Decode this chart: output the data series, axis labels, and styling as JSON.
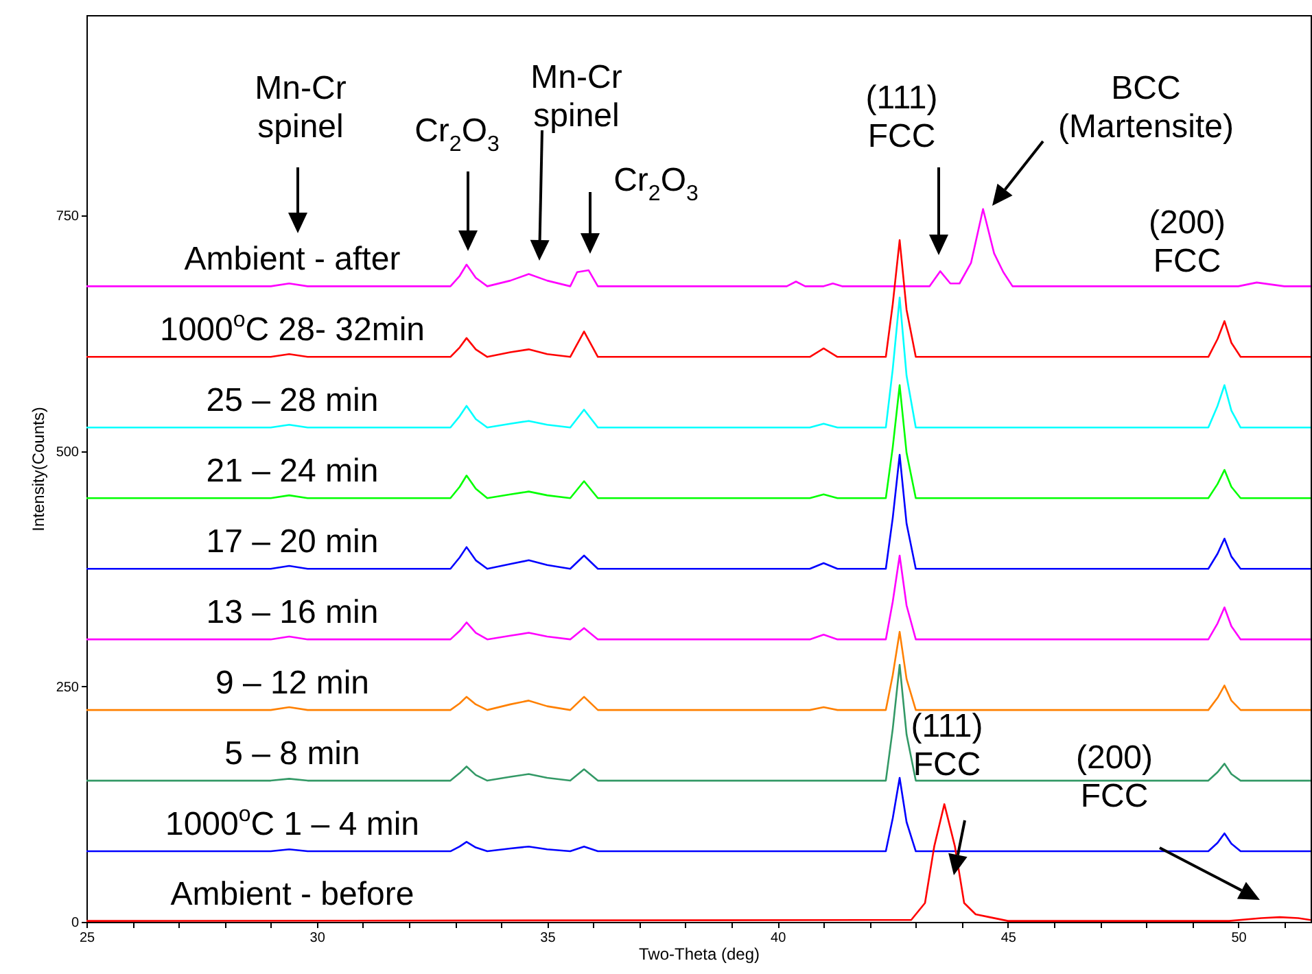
{
  "chart_data": {
    "type": "line",
    "xlabel": "Two-Theta (deg)",
    "ylabel": "Intensity(Counts)",
    "xlim": [
      25,
      51.57
    ],
    "ylim": [
      0,
      963
    ],
    "xticks": [
      25,
      {
        "value": 26,
        "label": null
      },
      {
        "value": 27,
        "label": null
      },
      {
        "value": 28,
        "label": null
      },
      {
        "value": 29,
        "label": null
      },
      30,
      {
        "value": 31,
        "label": null
      },
      {
        "value": 32,
        "label": null
      },
      {
        "value": 33,
        "label": null
      },
      {
        "value": 34,
        "label": null
      },
      35,
      {
        "value": 36,
        "label": null
      },
      {
        "value": 37,
        "label": null
      },
      {
        "value": 38,
        "label": null
      },
      {
        "value": 39,
        "label": null
      },
      40,
      {
        "value": 41,
        "label": null
      },
      {
        "value": 42,
        "label": null
      },
      {
        "value": 43,
        "label": null
      },
      {
        "value": 44,
        "label": null
      },
      45,
      {
        "value": 46,
        "label": null
      },
      {
        "value": 47,
        "label": null
      },
      {
        "value": 48,
        "label": null
      },
      {
        "value": 49,
        "label": null
      },
      50,
      {
        "value": 51,
        "label": null
      }
    ],
    "yticks": [
      0,
      250,
      500,
      750
    ],
    "grid": false,
    "marker": "none",
    "line_style": "solid",
    "x": [
      25,
      29.0,
      29.4,
      29.8,
      32.9,
      33.1,
      33.25,
      33.45,
      33.7,
      34.2,
      34.6,
      35.0,
      35.5,
      35.8,
      36.1,
      40.7,
      41.0,
      41.3,
      42.35,
      42.5,
      42.65,
      42.8,
      43.0,
      49.35,
      49.55,
      49.7,
      49.85,
      50.05,
      51.57
    ],
    "series": [
      {
        "name": "Ambient - after",
        "color": "#ff00ff",
        "x": [
          25,
          29.0,
          29.4,
          29.8,
          32.9,
          33.1,
          33.25,
          33.45,
          33.7,
          34.2,
          34.6,
          35.0,
          35.5,
          35.65,
          35.9,
          36.1,
          40.2,
          40.4,
          40.6,
          41.0,
          41.2,
          41.4,
          43.3,
          43.53,
          43.75,
          43.95,
          44.2,
          44.46,
          44.7,
          44.9,
          45.1,
          50.0,
          50.4,
          51.0,
          51.57
        ],
        "values": [
          675,
          675,
          678,
          675,
          675,
          686,
          698,
          684,
          675,
          681,
          688,
          681,
          675,
          690,
          692,
          675,
          675,
          680,
          675,
          675,
          678,
          675,
          675,
          691,
          678,
          678,
          700,
          757,
          710,
          690,
          675,
          675,
          679,
          675,
          675
        ]
      },
      {
        "name": "1000$^{o}$C 28- 32min",
        "color": "#ff0000",
        "values": [
          600,
          600,
          603,
          600,
          600,
          610,
          620,
          608,
          600,
          605,
          608,
          603,
          600,
          627,
          600,
          600,
          609,
          600,
          600,
          656,
          724,
          650,
          600,
          600,
          619,
          638,
          615,
          600,
          600
        ]
      },
      {
        "name": "25 – 28 min",
        "color": "#00ffff",
        "values": [
          525,
          525,
          528,
          525,
          525,
          537,
          548,
          534,
          525,
          529,
          532,
          528,
          525,
          544,
          525,
          525,
          529,
          525,
          525,
          587,
          663,
          580,
          525,
          525,
          548,
          570,
          543,
          525,
          525
        ]
      },
      {
        "name": "21 – 24 min",
        "color": "#00ff00",
        "values": [
          450,
          450,
          453,
          450,
          450,
          462,
          474,
          460,
          450,
          454,
          457,
          453,
          450,
          468,
          450,
          450,
          454,
          450,
          450,
          504,
          570,
          498,
          450,
          450,
          465,
          480,
          462,
          450,
          450
        ]
      },
      {
        "name": "17 – 20 min",
        "color": "#0000ff",
        "values": [
          375,
          375,
          378,
          375,
          375,
          387,
          398,
          384,
          375,
          380,
          384,
          379,
          375,
          389,
          375,
          375,
          381,
          375,
          375,
          429,
          496,
          423,
          375,
          375,
          391,
          407,
          388,
          375,
          375
        ]
      },
      {
        "name": "13 – 16 min",
        "color": "#ff00ff",
        "values": [
          300,
          300,
          303,
          300,
          300,
          309,
          318,
          307,
          300,
          304,
          307,
          303,
          300,
          312,
          300,
          300,
          305,
          300,
          300,
          340,
          389,
          336,
          300,
          300,
          317,
          334,
          314,
          300,
          300
        ]
      },
      {
        "name": "9 – 12 min",
        "color": "#ff8000",
        "values": [
          225,
          225,
          228,
          225,
          225,
          232,
          239,
          231,
          225,
          231,
          235,
          229,
          225,
          239,
          225,
          225,
          228,
          225,
          225,
          262,
          308,
          258,
          225,
          225,
          238,
          251,
          235,
          225,
          225
        ]
      },
      {
        "name": "5 – 8 min",
        "color": "#339966",
        "values": [
          150,
          150,
          152,
          150,
          150,
          158,
          165,
          156,
          150,
          154,
          157,
          153,
          150,
          162,
          150,
          150,
          150,
          150,
          150,
          205,
          273,
          199,
          150,
          150,
          159,
          168,
          157,
          150,
          150
        ]
      },
      {
        "name": "1000$^{o}$C 1 – 4 min",
        "color": "#0000ff",
        "values": [
          75,
          75,
          77,
          75,
          75,
          80,
          85,
          79,
          75,
          78,
          80,
          77,
          75,
          80,
          75,
          75,
          75,
          75,
          75,
          110,
          153,
          106,
          75,
          75,
          84,
          94,
          83,
          75,
          75
        ]
      },
      {
        "name": "Ambient - before",
        "color": "#ff0000",
        "x": [
          25,
          42.9,
          43.2,
          43.4,
          43.62,
          43.85,
          44.05,
          44.3,
          44.6,
          45,
          49.8,
          50.5,
          50.9,
          51.3,
          51.57
        ],
        "values": [
          1,
          2,
          20,
          80,
          125,
          80,
          20,
          8,
          5,
          1,
          1,
          4,
          5,
          4,
          2
        ]
      }
    ],
    "annotations": [
      "Mn-Cr\nspinel",
      "Cr$_{2}$O$_{3}$",
      "Mn-Cr\nspinel",
      "Cr$_{2}$O$_{3}$",
      "(111)\nFCC",
      "BCC\n(Martensite)",
      "(200)\nFCC",
      "(111)\nFCC",
      "(200)\nFCC"
    ]
  }
}
